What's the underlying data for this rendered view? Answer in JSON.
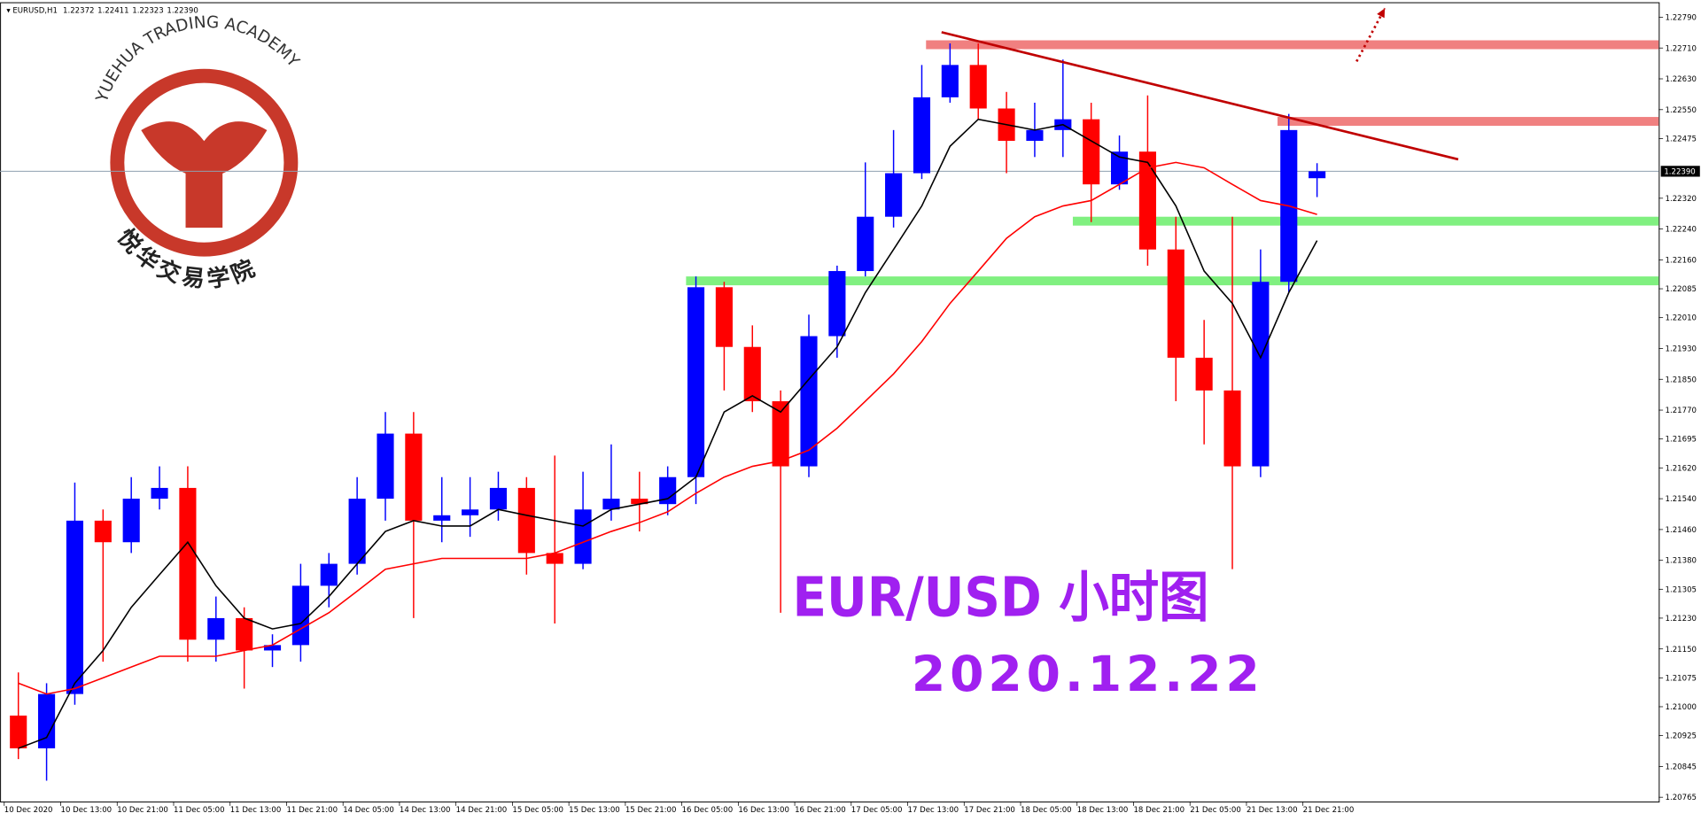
{
  "chart_data": {
    "type": "candlestick",
    "symbol": "EURUSD,H1",
    "header_values": [
      "1.22372",
      "1.22411",
      "1.22323",
      "1.22390"
    ],
    "title": "EUR/USD 小时图",
    "subtitle": "2020.12.22",
    "logo": {
      "title": "YUEHUA TRADING ACADEMY",
      "subtitle": "悦华交易学院"
    },
    "bullish_color": "#0000ff",
    "bearish_color": "#ff0000",
    "open": [
      1.20977,
      1.20892,
      1.21033,
      1.21483,
      1.21427,
      1.2154,
      1.21568,
      1.21174,
      1.2123,
      1.21146,
      1.2116,
      1.21314,
      1.21371,
      1.2154,
      1.21709,
      1.21483,
      1.21497,
      1.21512,
      1.21568,
      1.21399,
      1.21371,
      1.21512,
      1.2154,
      1.21526,
      1.21596,
      1.22089,
      1.21934,
      1.21793,
      1.21624,
      1.21962,
      1.22131,
      1.22272,
      1.22385,
      1.22582,
      1.22666,
      1.22553,
      1.22469,
      1.22497,
      1.22525,
      1.22356,
      1.22441,
      1.22187,
      1.21906,
      1.21821,
      1.21624,
      1.22103,
      1.22372
    ],
    "high": [
      1.21089,
      1.21061,
      1.21582,
      1.21512,
      1.21596,
      1.21624,
      1.21624,
      1.21286,
      1.21258,
      1.21188,
      1.21371,
      1.21399,
      1.21596,
      1.21765,
      1.21765,
      1.21596,
      1.21596,
      1.2161,
      1.21596,
      1.21652,
      1.2161,
      1.21681,
      1.2161,
      1.21624,
      1.22117,
      1.22103,
      1.2199,
      1.21821,
      1.22018,
      1.22145,
      1.22413,
      1.22497,
      1.22666,
      1.22722,
      1.22722,
      1.22596,
      1.22568,
      1.2268,
      1.22568,
      1.22483,
      1.22587,
      1.22272,
      1.22004,
      1.22272,
      1.22187,
      1.22539,
      1.22411
    ],
    "low": [
      1.20864,
      1.20808,
      1.21005,
      1.21117,
      1.21399,
      1.21512,
      1.21117,
      1.21117,
      1.21047,
      1.21103,
      1.21117,
      1.21258,
      1.21343,
      1.21483,
      1.2123,
      1.21427,
      1.21441,
      1.21483,
      1.21343,
      1.21216,
      1.21357,
      1.21483,
      1.21455,
      1.21497,
      1.21526,
      1.21821,
      1.21765,
      1.21244,
      1.21596,
      1.21906,
      1.22117,
      1.22244,
      1.2237,
      1.22568,
      1.22525,
      1.22385,
      1.22427,
      1.22427,
      1.22258,
      1.22342,
      1.22145,
      1.21793,
      1.21681,
      1.21357,
      1.21596,
      1.22075,
      1.22323
    ],
    "close": [
      1.20892,
      1.21033,
      1.21483,
      1.21427,
      1.2154,
      1.21568,
      1.21174,
      1.2123,
      1.21146,
      1.2116,
      1.21314,
      1.21371,
      1.2154,
      1.21709,
      1.21483,
      1.21497,
      1.21512,
      1.21568,
      1.21399,
      1.21371,
      1.21512,
      1.2154,
      1.21526,
      1.21596,
      1.22089,
      1.21934,
      1.21793,
      1.21624,
      1.21962,
      1.22131,
      1.22272,
      1.22385,
      1.22582,
      1.22666,
      1.22553,
      1.22469,
      1.22497,
      1.22525,
      1.22356,
      1.22441,
      1.22187,
      1.21906,
      1.21821,
      1.21624,
      1.22103,
      1.22497,
      1.2239
    ],
    "lines": [
      {
        "color": "#000000",
        "values": [
          1.20892,
          1.2092,
          1.21061,
          1.21146,
          1.21258,
          1.21343,
          1.21427,
          1.21314,
          1.2123,
          1.21202,
          1.21216,
          1.21286,
          1.21371,
          1.21455,
          1.21483,
          1.21469,
          1.21469,
          1.21512,
          1.21497,
          1.21483,
          1.21469,
          1.21512,
          1.21526,
          1.2154,
          1.21596,
          1.21765,
          1.21807,
          1.21765,
          1.2185,
          1.21934,
          1.22075,
          1.22187,
          1.223,
          1.22455,
          1.22525,
          1.22511,
          1.22497,
          1.22511,
          1.22469,
          1.22427,
          1.22413,
          1.223,
          1.22131,
          1.22047,
          1.21906,
          1.22075,
          1.2221
        ]
      },
      {
        "color": "#ff0000",
        "values": [
          1.21061,
          1.21033,
          1.21047,
          1.21075,
          1.21103,
          1.21131,
          1.21131,
          1.21131,
          1.21146,
          1.2116,
          1.21202,
          1.21244,
          1.213,
          1.21357,
          1.21371,
          1.21385,
          1.21385,
          1.21385,
          1.21385,
          1.21399,
          1.21427,
          1.21455,
          1.21478,
          1.21506,
          1.21554,
          1.21596,
          1.21624,
          1.21638,
          1.21666,
          1.21723,
          1.21793,
          1.21864,
          1.21948,
          1.22047,
          1.22131,
          1.22216,
          1.22272,
          1.223,
          1.22314,
          1.22356,
          1.22399,
          1.22413,
          1.22399,
          1.22356,
          1.22314,
          1.223,
          1.22278
        ]
      }
    ],
    "zones": [
      {
        "color": "#f08080",
        "low": 1.22707,
        "high": 1.2273,
        "x_start": 32.65
      },
      {
        "color": "#f08080",
        "low": 1.22508,
        "high": 1.22531,
        "x_start": 45.1
      },
      {
        "color": "#80f080",
        "low": 1.22249,
        "high": 1.22272,
        "x_start": 37.85
      },
      {
        "color": "#80f080",
        "low": 1.22094,
        "high": 1.22117,
        "x_start": 24.15
      }
    ],
    "trendline": {
      "color": "#c00000",
      "x": [
        33.2,
        51.5
      ],
      "y": [
        1.22751,
        1.22421
      ]
    },
    "arrow": {
      "color": "#c00000",
      "x": [
        47.9,
        48.9
      ],
      "y": [
        1.22675,
        1.22813
      ]
    },
    "last_price": {
      "value": 1.2239,
      "label": "1.22390"
    },
    "xlim": [
      -0.15,
      58.6
    ],
    "ylim": [
      1.20754,
      1.22829
    ],
    "xticks": [
      {
        "value": 0,
        "label": "10 Dec 2020"
      },
      {
        "value": 2,
        "label": "10 Dec 13:00"
      },
      {
        "value": 4,
        "label": "10 Dec 21:00"
      },
      {
        "value": 6,
        "label": "11 Dec 05:00"
      },
      {
        "value": 8,
        "label": "11 Dec 13:00"
      },
      {
        "value": 10,
        "label": "11 Dec 21:00"
      },
      {
        "value": 12,
        "label": "14 Dec 05:00"
      },
      {
        "value": 14,
        "label": "14 Dec 13:00"
      },
      {
        "value": 16,
        "label": "14 Dec 21:00"
      },
      {
        "value": 18,
        "label": "15 Dec 05:00"
      },
      {
        "value": 20,
        "label": "15 Dec 13:00"
      },
      {
        "value": 22,
        "label": "15 Dec 21:00"
      },
      {
        "value": 24,
        "label": "16 Dec 05:00"
      },
      {
        "value": 26,
        "label": "16 Dec 13:00"
      },
      {
        "value": 28,
        "label": "16 Dec 21:00"
      },
      {
        "value": 30,
        "label": "17 Dec 05:00"
      },
      {
        "value": 32,
        "label": "17 Dec 13:00"
      },
      {
        "value": 34,
        "label": "17 Dec 21:00"
      },
      {
        "value": 36,
        "label": "18 Dec 05:00"
      },
      {
        "value": 38,
        "label": "18 Dec 13:00"
      },
      {
        "value": 40,
        "label": "18 Dec 21:00"
      },
      {
        "value": 42,
        "label": "21 Dec 05:00"
      },
      {
        "value": 44,
        "label": "21 Dec 13:00"
      },
      {
        "value": 46,
        "label": "21 Dec 21:00"
      }
    ],
    "yticks": [
      {
        "value": 1.2279,
        "label": "1.22790"
      },
      {
        "value": 1.2271,
        "label": "1.22710"
      },
      {
        "value": 1.2263,
        "label": "1.22630"
      },
      {
        "value": 1.2255,
        "label": "1.22550"
      },
      {
        "value": 1.22475,
        "label": "1.22475"
      },
      {
        "value": 1.2232,
        "label": "1.22320"
      },
      {
        "value": 1.2224,
        "label": "1.22240"
      },
      {
        "value": 1.2216,
        "label": "1.22160"
      },
      {
        "value": 1.22085,
        "label": "1.22085"
      },
      {
        "value": 1.2201,
        "label": "1.22010"
      },
      {
        "value": 1.2193,
        "label": "1.21930"
      },
      {
        "value": 1.2185,
        "label": "1.21850"
      },
      {
        "value": 1.2177,
        "label": "1.21770"
      },
      {
        "value": 1.21695,
        "label": "1.21695"
      },
      {
        "value": 1.2162,
        "label": "1.21620"
      },
      {
        "value": 1.2154,
        "label": "1.21540"
      },
      {
        "value": 1.2146,
        "label": "1.21460"
      },
      {
        "value": 1.2138,
        "label": "1.21380"
      },
      {
        "value": 1.21305,
        "label": "1.21305"
      },
      {
        "value": 1.2123,
        "label": "1.21230"
      },
      {
        "value": 1.2115,
        "label": "1.21150"
      },
      {
        "value": 1.21075,
        "label": "1.21075"
      },
      {
        "value": 1.21,
        "label": "1.21000"
      },
      {
        "value": 1.20925,
        "label": "1.20925"
      },
      {
        "value": 1.20845,
        "label": "1.20845"
      },
      {
        "value": 1.20765,
        "label": "1.20765"
      }
    ]
  }
}
